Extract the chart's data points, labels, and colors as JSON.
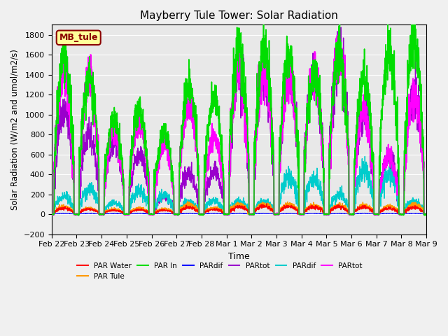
{
  "title": "Mayberry Tule Tower: Solar Radiation",
  "ylabel": "Solar Radiation (W/m2 and umol/m2/s)",
  "xlabel": "Time",
  "ylim": [
    -200,
    1900
  ],
  "yticks": [
    -200,
    0,
    200,
    400,
    600,
    800,
    1000,
    1200,
    1400,
    1600,
    1800
  ],
  "x_labels": [
    "Feb 22",
    "Feb 23",
    "Feb 24",
    "Feb 25",
    "Feb 26",
    "Feb 27",
    "Feb 28",
    "Mar 1",
    "Mar 2",
    "Mar 3",
    "Mar 4",
    "Mar 5",
    "Mar 6",
    "Mar 7",
    "Mar 8",
    "Mar 9"
  ],
  "station_label": "MB_tule",
  "background_color": "#e8e8e8",
  "day_peaks": {
    "Feb 22": {
      "green": 1600,
      "magenta": 1400,
      "cyan": 180,
      "orange": 80,
      "red": 60,
      "purple": 1050,
      "blue": 10
    },
    "Feb 23": {
      "green": 1360,
      "magenta": 1350,
      "cyan": 250,
      "orange": 60,
      "red": 50,
      "purple": 820,
      "blue": 10
    },
    "Feb 24": {
      "green": 960,
      "magenta": 830,
      "cyan": 120,
      "orange": 50,
      "red": 40,
      "purple": 730,
      "blue": 10
    },
    "Feb 25": {
      "green": 1050,
      "magenta": 930,
      "cyan": 230,
      "orange": 60,
      "red": 45,
      "purple": 620,
      "blue": 10
    },
    "Feb 26": {
      "green": 820,
      "magenta": 720,
      "cyan": 200,
      "orange": 55,
      "red": 40,
      "purple": 170,
      "blue": 10
    },
    "Feb 27": {
      "green": 1290,
      "magenta": 1100,
      "cyan": 130,
      "orange": 100,
      "red": 70,
      "purple": 420,
      "blue": 10
    },
    "Feb 28": {
      "green": 1160,
      "magenta": 770,
      "cyan": 140,
      "orange": 65,
      "red": 50,
      "purple": 430,
      "blue": 10
    },
    "Mar 1": {
      "green": 1690,
      "magenta": 1450,
      "cyan": 130,
      "orange": 100,
      "red": 75,
      "purple": 1400,
      "blue": 10
    },
    "Mar 2": {
      "green": 1680,
      "magenta": 1440,
      "cyan": 130,
      "orange": 100,
      "red": 80,
      "purple": 1430,
      "blue": 10
    },
    "Mar 3": {
      "green": 1590,
      "magenta": 1390,
      "cyan": 370,
      "orange": 100,
      "red": 80,
      "purple": 1390,
      "blue": 10
    },
    "Mar 4": {
      "green": 1430,
      "magenta": 1420,
      "cyan": 350,
      "orange": 90,
      "red": 75,
      "purple": 1420,
      "blue": 10
    },
    "Mar 5": {
      "green": 1650,
      "magenta": 1600,
      "cyan": 200,
      "orange": 90,
      "red": 75,
      "purple": 1600,
      "blue": 10
    },
    "Mar 6": {
      "green": 1380,
      "magenta": 1040,
      "cyan": 440,
      "orange": 90,
      "red": 70,
      "purple": 1040,
      "blue": 10
    },
    "Mar 7": {
      "green": 1590,
      "magenta": 590,
      "cyan": 400,
      "orange": 80,
      "red": 60,
      "purple": 580,
      "blue": 10
    },
    "Mar 8": {
      "green": 1740,
      "magenta": 1200,
      "cyan": 130,
      "orange": 95,
      "red": 70,
      "purple": 1200,
      "blue": 10
    }
  }
}
